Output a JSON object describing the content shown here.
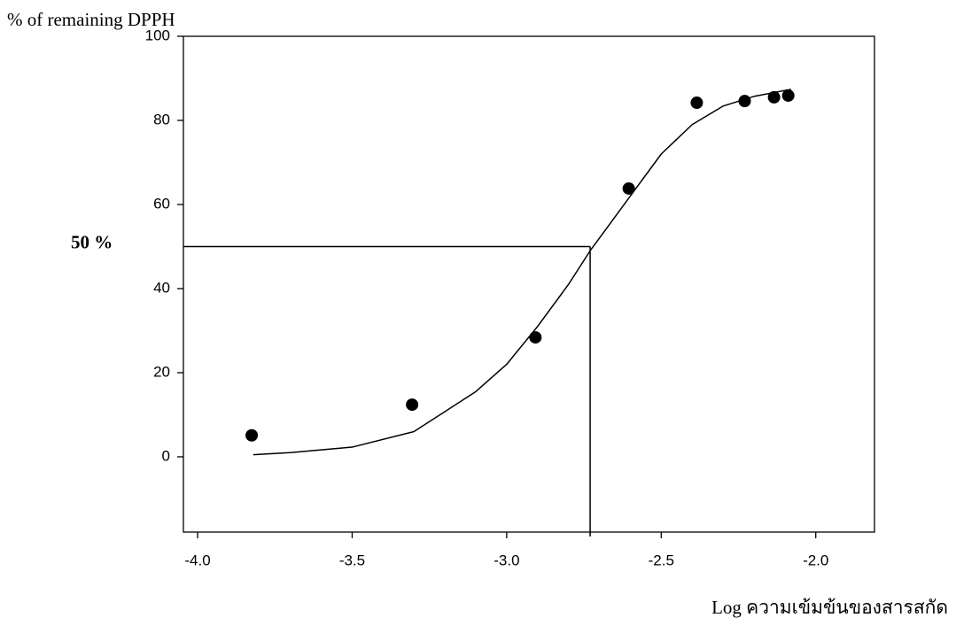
{
  "chart_data": {
    "type": "scatter",
    "ylabel": "% of remaining DPPH",
    "xlabel": "Log ความเข้มข้นของสารสกัด",
    "xlim": [
      -4.046,
      -1.81
    ],
    "ylim": [
      -17.9,
      100
    ],
    "xticks": [
      {
        "value": -4,
        "label": "-4.0"
      },
      -3.5,
      {
        "value": -3,
        "label": "-3.0"
      },
      -2.5,
      {
        "value": -2,
        "label": "-2.0"
      }
    ],
    "yticks": [
      0,
      20,
      40,
      60,
      80,
      100
    ],
    "series": [
      {
        "type": "scatter",
        "color": "#000000",
        "x": [
          -3.825,
          -3.306,
          -2.907,
          -2.605,
          -2.385,
          -2.23,
          -2.135,
          -2.089
        ],
        "values": [
          5.1,
          12.4,
          28.4,
          63.8,
          84.2,
          84.6,
          85.5,
          85.9
        ]
      },
      {
        "type": "line",
        "color": "#000000",
        "x": [
          -3.82,
          -3.7,
          -3.5,
          -3.3,
          -3.1,
          -3.0,
          -2.9,
          -2.8,
          -2.73,
          -2.6,
          -2.5,
          -2.4,
          -2.3,
          -2.2,
          -2.08
        ],
        "values": [
          0.5,
          1,
          2.3,
          6,
          15.5,
          22,
          31,
          41,
          49,
          62,
          72,
          79,
          83.4,
          85.7,
          87.4
        ]
      }
    ],
    "reference_lines": {
      "y": 50,
      "x": -2.73,
      "label": "50 %"
    }
  }
}
